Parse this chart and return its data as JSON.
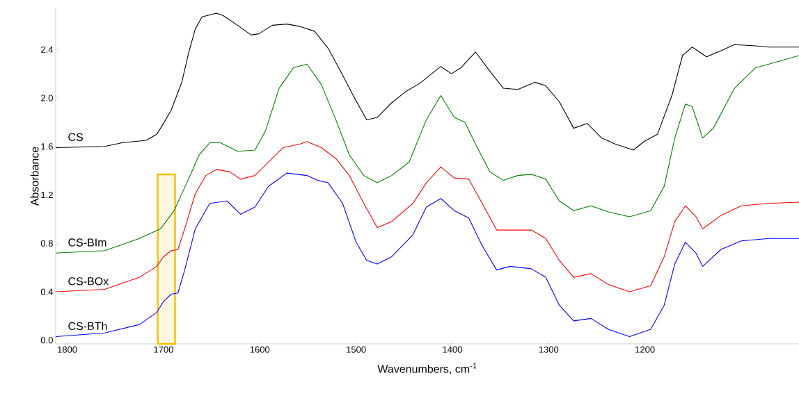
{
  "chart_data": {
    "type": "line",
    "xlabel": "Wavenumbers, cm$^{-1}$",
    "ylabel": "Absorbance",
    "xlim": [
      1812,
      1040
    ],
    "xticks": [
      1800,
      1700,
      1600,
      1500,
      1400,
      1300,
      1200
    ],
    "ylim": [
      -0.03,
      2.74
    ],
    "yticks": [
      {
        "value": 0,
        "label": "0.0"
      },
      0.4,
      0.8,
      1.2,
      1.6,
      {
        "value": 2,
        "label": "2.0"
      },
      2.4
    ],
    "grid": false,
    "legend": false,
    "marker": "none",
    "line_style": "solid",
    "bands": [
      {
        "axis": "x",
        "from": 1706,
        "to": 1688,
        "color": "#ffc000"
      }
    ],
    "series": [
      {
        "name": "CS",
        "color": "#000000",
        "x": [
          1812,
          1761,
          1743,
          1718,
          1707,
          1700,
          1692,
          1681,
          1674,
          1667,
          1660,
          1645,
          1638,
          1623,
          1609,
          1601,
          1587,
          1572,
          1558,
          1543,
          1529,
          1514,
          1503,
          1489,
          1478,
          1463,
          1449,
          1434,
          1412,
          1401,
          1391,
          1376,
          1361,
          1347,
          1332,
          1314,
          1303,
          1289,
          1274,
          1260,
          1245,
          1231,
          1212,
          1201,
          1187,
          1172,
          1161,
          1151,
          1136,
          1121,
          1107,
          1085,
          1071,
          1040
        ],
        "values": [
          1.59,
          1.6,
          1.63,
          1.65,
          1.7,
          1.79,
          1.9,
          2.13,
          2.37,
          2.57,
          2.67,
          2.7,
          2.68,
          2.6,
          2.52,
          2.53,
          2.6,
          2.61,
          2.59,
          2.55,
          2.41,
          2.19,
          2.02,
          1.82,
          1.84,
          1.96,
          2.05,
          2.12,
          2.26,
          2.2,
          2.25,
          2.38,
          2.22,
          2.08,
          2.07,
          2.13,
          2.1,
          1.97,
          1.75,
          1.79,
          1.67,
          1.62,
          1.57,
          1.64,
          1.7,
          2.02,
          2.35,
          2.42,
          2.34,
          2.39,
          2.44,
          2.43,
          2.42,
          2.42
        ]
      },
      {
        "name": "CS-BIm",
        "color": "#008000",
        "x": [
          1812,
          1761,
          1725,
          1703,
          1689,
          1674,
          1663,
          1652,
          1641,
          1623,
          1605,
          1594,
          1580,
          1565,
          1551,
          1536,
          1521,
          1507,
          1492,
          1478,
          1463,
          1445,
          1427,
          1412,
          1398,
          1387,
          1376,
          1361,
          1347,
          1332,
          1318,
          1303,
          1289,
          1274,
          1256,
          1238,
          1216,
          1194,
          1180,
          1169,
          1158,
          1151,
          1140,
          1129,
          1107,
          1085,
          1071,
          1040
        ],
        "values": [
          0.72,
          0.74,
          0.84,
          0.92,
          1.07,
          1.33,
          1.53,
          1.63,
          1.63,
          1.56,
          1.57,
          1.73,
          2.08,
          2.25,
          2.28,
          2.11,
          1.82,
          1.53,
          1.36,
          1.3,
          1.36,
          1.47,
          1.82,
          2.02,
          1.84,
          1.8,
          1.62,
          1.39,
          1.32,
          1.36,
          1.37,
          1.33,
          1.15,
          1.07,
          1.11,
          1.06,
          1.02,
          1.07,
          1.27,
          1.67,
          1.95,
          1.93,
          1.67,
          1.75,
          2.08,
          2.25,
          2.28,
          2.35
        ]
      },
      {
        "name": "CS-BOx",
        "color": "#ff0000",
        "x": [
          1812,
          1761,
          1725,
          1707,
          1700,
          1692,
          1685,
          1678,
          1667,
          1656,
          1645,
          1631,
          1620,
          1605,
          1591,
          1576,
          1558,
          1551,
          1536,
          1521,
          1507,
          1492,
          1478,
          1463,
          1441,
          1427,
          1412,
          1398,
          1383,
          1369,
          1354,
          1340,
          1318,
          1303,
          1289,
          1274,
          1256,
          1238,
          1216,
          1194,
          1180,
          1169,
          1158,
          1147,
          1140,
          1121,
          1100,
          1071,
          1040
        ],
        "values": [
          0.4,
          0.42,
          0.52,
          0.61,
          0.69,
          0.74,
          0.75,
          0.92,
          1.21,
          1.36,
          1.41,
          1.39,
          1.33,
          1.36,
          1.47,
          1.59,
          1.62,
          1.64,
          1.59,
          1.5,
          1.36,
          1.13,
          0.93,
          0.98,
          1.13,
          1.3,
          1.43,
          1.34,
          1.33,
          1.13,
          0.91,
          0.91,
          0.91,
          0.84,
          0.66,
          0.52,
          0.55,
          0.46,
          0.4,
          0.45,
          0.69,
          0.98,
          1.11,
          1.02,
          0.92,
          1.03,
          1.11,
          1.13,
          1.14
        ]
      },
      {
        "name": "CS-BTh",
        "color": "#0000ff",
        "x": [
          1812,
          1761,
          1725,
          1707,
          1700,
          1692,
          1685,
          1678,
          1667,
          1652,
          1634,
          1620,
          1605,
          1591,
          1572,
          1551,
          1540,
          1529,
          1514,
          1500,
          1489,
          1478,
          1463,
          1441,
          1427,
          1412,
          1398,
          1383,
          1369,
          1354,
          1340,
          1318,
          1303,
          1289,
          1274,
          1256,
          1238,
          1216,
          1194,
          1180,
          1169,
          1158,
          1147,
          1140,
          1121,
          1100,
          1071,
          1040
        ],
        "values": [
          0.03,
          0.06,
          0.13,
          0.23,
          0.32,
          0.38,
          0.39,
          0.58,
          0.92,
          1.13,
          1.15,
          1.04,
          1.1,
          1.27,
          1.38,
          1.36,
          1.32,
          1.3,
          1.13,
          0.81,
          0.66,
          0.63,
          0.69,
          0.87,
          1.1,
          1.17,
          1.07,
          1.01,
          0.78,
          0.58,
          0.61,
          0.59,
          0.52,
          0.29,
          0.16,
          0.18,
          0.09,
          0.03,
          0.09,
          0.29,
          0.63,
          0.81,
          0.72,
          0.61,
          0.75,
          0.82,
          0.84,
          0.84
        ]
      }
    ]
  }
}
